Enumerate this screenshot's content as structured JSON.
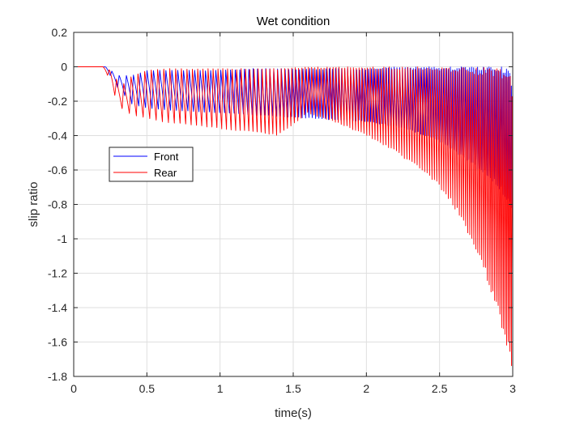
{
  "chart_data": {
    "type": "line",
    "title": "Wet condition",
    "xlabel": "time(s)",
    "ylabel": "slip ratio",
    "xlim": [
      0,
      3
    ],
    "ylim": [
      -1.8,
      0.2
    ],
    "xticks": [
      0,
      0.5,
      1,
      1.5,
      2,
      2.5,
      3
    ],
    "xtick_labels": [
      "0",
      "0.5",
      "1",
      "1.5",
      "2",
      "2.5",
      "3"
    ],
    "yticks": [
      0.2,
      0,
      -0.2,
      -0.4,
      -0.6,
      -0.8,
      -1,
      -1.2,
      -1.4,
      -1.6,
      -1.8
    ],
    "ytick_labels": [
      "0.2",
      "0",
      "-0.2",
      "-0.4",
      "-0.6",
      "-0.8",
      "-1",
      "-1.2",
      "-1.4",
      "-1.6",
      "-1.8"
    ],
    "grid": true,
    "legend_position": "upper-left-inside",
    "series": [
      {
        "name": "Front",
        "color": "#0000ff",
        "envelope": {
          "t": [
            0,
            0.2,
            0.22,
            0.3,
            0.4,
            0.5,
            0.6,
            0.8,
            1.0,
            1.2,
            1.4,
            1.6,
            1.8,
            2.0,
            2.2,
            2.4,
            2.5,
            2.6,
            2.7,
            2.8,
            2.9,
            2.97,
            3.0
          ],
          "upper": [
            0,
            0,
            0,
            -0.05,
            -0.05,
            -0.02,
            -0.02,
            -0.02,
            -0.02,
            -0.01,
            -0.01,
            -0.01,
            -0.01,
            -0.01,
            0,
            0,
            0,
            0,
            0,
            0,
            0,
            0,
            -0.1
          ],
          "lower": [
            0,
            0,
            -0.01,
            -0.12,
            -0.22,
            -0.24,
            -0.25,
            -0.26,
            -0.27,
            -0.28,
            -0.29,
            -0.3,
            -0.31,
            -0.32,
            -0.35,
            -0.4,
            -0.44,
            -0.5,
            -0.56,
            -0.62,
            -0.7,
            -0.8,
            -0.85
          ],
          "period": [
            0.05,
            0.05,
            0.05,
            0.05,
            0.048,
            0.045,
            0.042,
            0.038,
            0.034,
            0.03,
            0.026,
            0.023,
            0.021,
            0.02,
            0.019,
            0.018,
            0.016,
            0.015,
            0.014,
            0.013,
            0.012,
            0.011,
            0.011
          ]
        }
      },
      {
        "name": "Rear",
        "color": "#ff0000",
        "envelope": {
          "t": [
            0,
            0.2,
            0.25,
            0.3,
            0.35,
            0.4,
            0.5,
            0.6,
            0.8,
            1.0,
            1.2,
            1.4,
            1.6,
            1.8,
            2.0,
            2.2,
            2.4,
            2.5,
            2.6,
            2.7,
            2.8,
            2.9,
            2.97,
            3.0
          ],
          "upper": [
            0,
            0,
            -0.02,
            -0.08,
            -0.1,
            -0.05,
            -0.02,
            -0.01,
            -0.01,
            -0.01,
            -0.01,
            -0.01,
            0,
            0,
            0,
            0,
            0,
            0,
            0,
            0,
            0,
            0,
            0,
            -0.1
          ],
          "lower": [
            0,
            0,
            -0.08,
            -0.22,
            -0.26,
            -0.28,
            -0.3,
            -0.32,
            -0.34,
            -0.36,
            -0.38,
            -0.4,
            -0.27,
            -0.33,
            -0.4,
            -0.5,
            -0.62,
            -0.7,
            -0.82,
            -0.98,
            -1.18,
            -1.45,
            -1.66,
            -1.8
          ],
          "period": [
            0.05,
            0.05,
            0.05,
            0.05,
            0.05,
            0.048,
            0.045,
            0.042,
            0.037,
            0.033,
            0.029,
            0.025,
            0.022,
            0.02,
            0.019,
            0.018,
            0.017,
            0.016,
            0.015,
            0.014,
            0.013,
            0.012,
            0.011,
            0.011
          ]
        }
      }
    ]
  }
}
